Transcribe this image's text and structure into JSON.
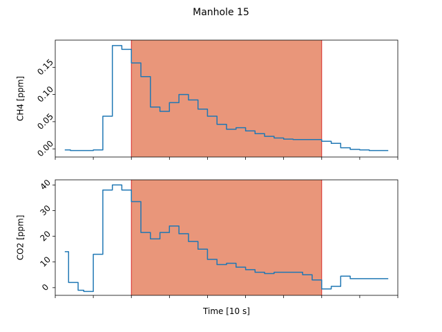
{
  "chart_data": {
    "type": "line",
    "title": "Manhole 15",
    "xlabel": "Time [10 s]",
    "xlim": [
      -0.5,
      17.5
    ],
    "highlight": {
      "x_start": 3.5,
      "x_end": 13.5,
      "fill": "#e9967a",
      "edge": "#d62728"
    },
    "line_color": "#1f77b4",
    "panels": [
      {
        "ylabel": "CH4 [ppm]",
        "ylim": [
          -0.015,
          0.2
        ],
        "yticks": [
          0.0,
          0.05,
          0.1,
          0.15
        ],
        "ytick_labels": [
          "0.00",
          "0.05",
          "0.10",
          "0.15"
        ],
        "series": {
          "x": [
            0,
            0.3,
            0.3,
            1.5,
            1.5,
            2,
            2,
            2.5,
            2.5,
            3,
            3,
            3.5,
            3.5,
            4,
            4,
            4.5,
            4.5,
            5,
            5,
            5.5,
            5.5,
            6,
            6,
            6.5,
            6.5,
            7,
            7,
            7.5,
            7.5,
            8,
            8,
            8.5,
            8,
            8.5,
            8.5,
            9,
            9,
            9.5,
            9.5,
            10,
            10,
            10.5,
            10.5,
            11,
            11,
            11.5,
            11.5,
            12,
            12,
            12.5,
            12.5,
            13,
            13,
            13.5,
            13.5,
            14,
            14,
            14.5,
            14.5,
            15,
            15,
            15.5,
            15.5,
            16,
            16,
            16.5,
            16.5,
            17
          ],
          "y": [
            -0.002,
            -0.002,
            -0.003,
            -0.003,
            -0.002,
            -0.002,
            0.06,
            0.06,
            0.19,
            0.19,
            0.183,
            0.183,
            0.158,
            0.158,
            0.133,
            0.133,
            0.077,
            0.077,
            0.069,
            0.069,
            0.085,
            0.085,
            0.1,
            0.1,
            0.09,
            0.09,
            0.073,
            0.073,
            0.06,
            0.06,
            0.045,
            0.045,
            0.045,
            0.045,
            0.036,
            0.036,
            0.039,
            0.039,
            0.033,
            0.033,
            0.028,
            0.028,
            0.023,
            0.023,
            0.02,
            0.02,
            0.018,
            0.018,
            0.017,
            0.017,
            0.017,
            0.017,
            0.017,
            0.017,
            0.014,
            0.014,
            0.01,
            0.01,
            0.002,
            0.002,
            -0.001,
            -0.001,
            -0.002,
            -0.002,
            -0.003,
            -0.003,
            -0.003,
            -0.003
          ]
        }
      },
      {
        "ylabel": "CO2 [ppm]",
        "ylim": [
          -3,
          42
        ],
        "yticks": [
          0,
          10,
          20,
          30,
          40
        ],
        "ytick_labels": [
          "0",
          "10",
          "20",
          "30",
          "40"
        ],
        "series": {
          "x": [
            0,
            0.2,
            0.2,
            0.7,
            0.7,
            1,
            1,
            1.5,
            1.5,
            2,
            2,
            2.5,
            2.5,
            3,
            3,
            3.5,
            3.5,
            4,
            4,
            4.5,
            4.5,
            5,
            5,
            5.5,
            5.5,
            6,
            6,
            6.5,
            6.5,
            7,
            7,
            7.5,
            7.5,
            8,
            8,
            8.5,
            8.5,
            9,
            9,
            9.5,
            9.5,
            10,
            10,
            10.5,
            10.5,
            11,
            11,
            11.5,
            11.5,
            12,
            12,
            12.5,
            12.5,
            13,
            13,
            13.5,
            13.5,
            14,
            14,
            14.5,
            14.5,
            15,
            15,
            15.5,
            15.5,
            16,
            16,
            16.5,
            16.5,
            17
          ],
          "y": [
            14,
            14,
            2,
            2,
            -1,
            -1,
            -1.5,
            -1.5,
            13,
            13,
            38,
            38,
            40,
            40,
            38,
            38,
            33.5,
            33.5,
            21.5,
            21.5,
            19,
            19,
            21.5,
            21.5,
            24,
            24,
            21,
            21,
            18,
            18,
            15,
            15,
            11,
            11,
            9,
            9,
            9.5,
            9.5,
            8,
            8,
            7,
            7,
            6,
            6,
            5.5,
            5.5,
            6,
            6,
            6,
            6,
            6,
            6,
            5,
            5,
            3,
            3,
            -0.5,
            -0.5,
            0.5,
            0.5,
            4.5,
            4.5,
            3.5,
            3.5,
            3.5,
            3.5,
            3.5,
            3.5,
            3.5,
            3.5
          ]
        }
      }
    ],
    "xticks": [
      -0.5,
      1.5,
      3.5,
      5.5,
      7.5,
      9.5,
      11.5,
      13.5,
      15.5,
      17.5
    ]
  }
}
